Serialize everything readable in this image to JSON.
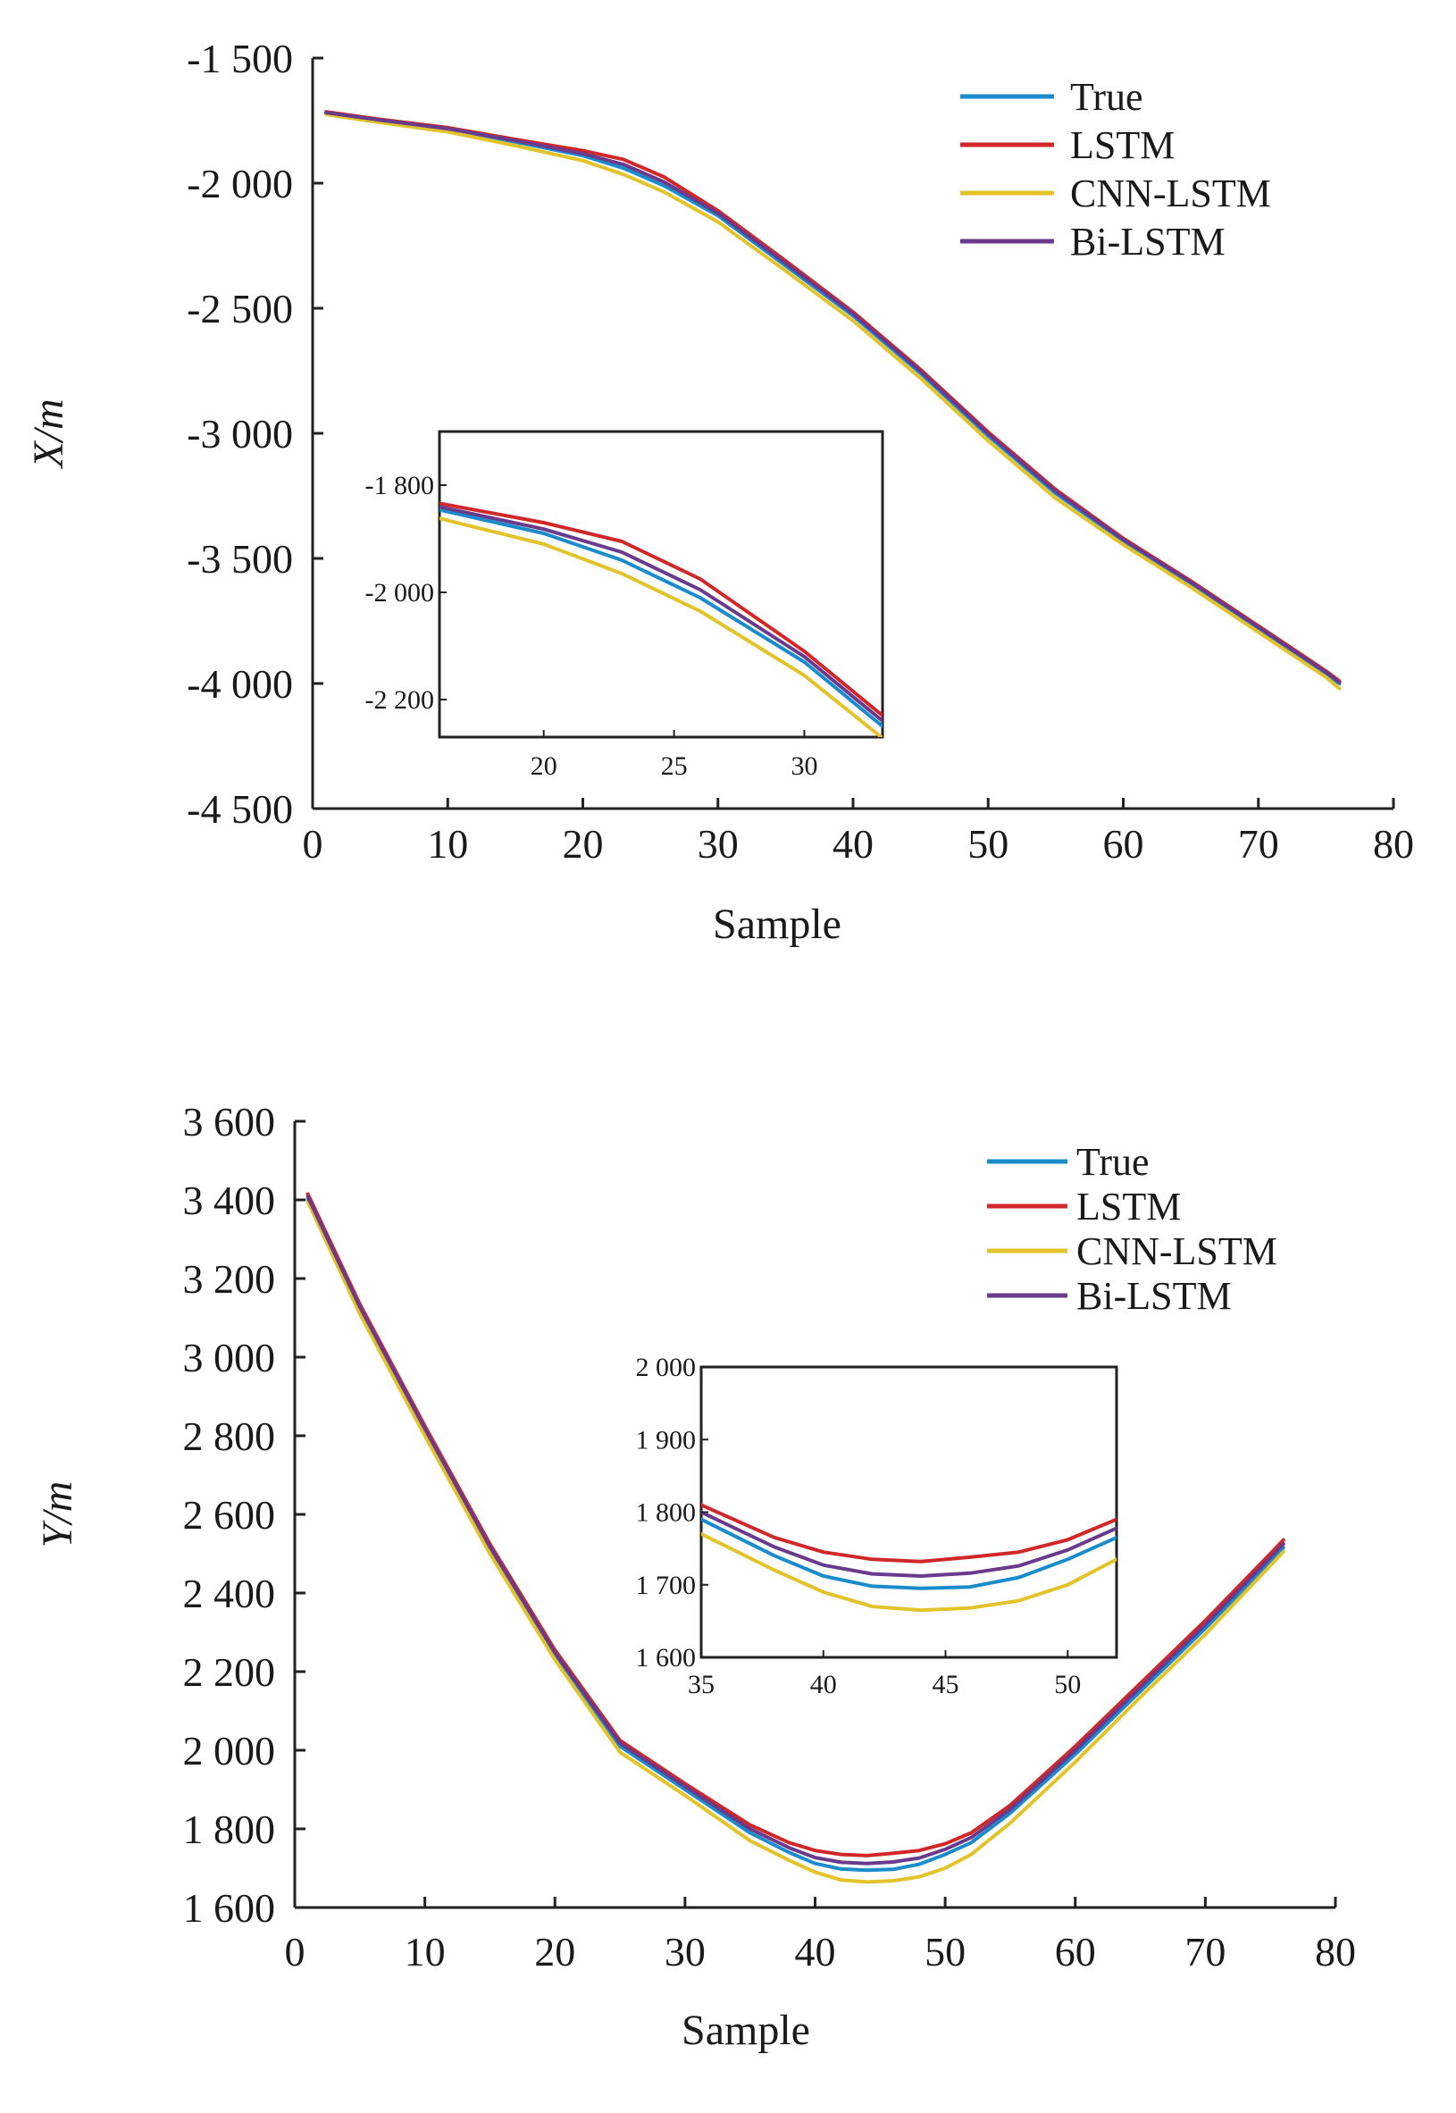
{
  "chart_data": [
    {
      "type": "line",
      "xlabel": "Sample",
      "ylabel": "X/m",
      "xlim": [
        0,
        80
      ],
      "ylim": [
        -4500,
        -1500
      ],
      "xticks": [
        0,
        10,
        20,
        30,
        40,
        50,
        60,
        70,
        80
      ],
      "xtick_labels": [
        "0",
        "10",
        "20",
        "30",
        "40",
        "50",
        "60",
        "70",
        "80"
      ],
      "yticks": [
        -1500,
        -2000,
        -2500,
        -3000,
        -3500,
        -4000,
        -4500
      ],
      "ytick_labels": [
        "-1 500",
        "-2 000",
        "-2 500",
        "-3 000",
        "-3 500",
        "-4 000",
        "-4 500"
      ],
      "grid": false,
      "legend": "top-right",
      "x": [
        1,
        5,
        10,
        15,
        20,
        23,
        26,
        30,
        35,
        40,
        45,
        50,
        55,
        60,
        65,
        70,
        75,
        76
      ],
      "series": [
        {
          "name": "True",
          "color": "#1a8ccc",
          "values": [
            -1720,
            -1750,
            -1785,
            -1835,
            -1890,
            -1940,
            -2010,
            -2130,
            -2330,
            -2530,
            -2760,
            -3010,
            -3240,
            -3430,
            -3600,
            -3780,
            -3960,
            -4000
          ]
        },
        {
          "name": "LSTM",
          "color": "#d02828",
          "values": [
            -1715,
            -1745,
            -1778,
            -1825,
            -1870,
            -1905,
            -1975,
            -2110,
            -2310,
            -2515,
            -2745,
            -2995,
            -3225,
            -3420,
            -3590,
            -3770,
            -3950,
            -3990
          ]
        },
        {
          "name": "CNN-LSTM",
          "color": "#e2c42a",
          "values": [
            -1725,
            -1758,
            -1795,
            -1850,
            -1910,
            -1965,
            -2035,
            -2155,
            -2350,
            -2550,
            -2780,
            -3030,
            -3260,
            -3445,
            -3615,
            -3795,
            -3975,
            -4020
          ]
        },
        {
          "name": "Bi-LSTM",
          "color": "#6a3a8c",
          "values": [
            -1718,
            -1748,
            -1782,
            -1830,
            -1882,
            -1925,
            -1995,
            -2120,
            -2320,
            -2522,
            -2752,
            -3002,
            -3232,
            -3425,
            -3595,
            -3775,
            -3955,
            -3995
          ]
        }
      ],
      "inset": {
        "xlim": [
          16,
          33
        ],
        "ylim": [
          -2270,
          -1700
        ],
        "xticks": [
          20,
          25,
          30
        ],
        "xtick_labels": [
          "20",
          "25",
          "30"
        ],
        "yticks": [
          -1800,
          -2000,
          -2200
        ],
        "ytick_labels": [
          "-1 800",
          "-2 000",
          "-2 200"
        ]
      }
    },
    {
      "type": "line",
      "xlabel": "Sample",
      "ylabel": "Y/m",
      "xlim": [
        0,
        80
      ],
      "ylim": [
        1600,
        3600
      ],
      "xticks": [
        0,
        10,
        20,
        30,
        40,
        50,
        60,
        70,
        80
      ],
      "xtick_labels": [
        "0",
        "10",
        "20",
        "30",
        "40",
        "50",
        "60",
        "70",
        "80"
      ],
      "yticks": [
        1600,
        1800,
        2000,
        2200,
        2400,
        2600,
        2800,
        3000,
        3200,
        3400,
        3600
      ],
      "ytick_labels": [
        "1 600",
        "1 800",
        "2 000",
        "2 200",
        "2 400",
        "2 600",
        "2 800",
        "3 000",
        "3 200",
        "3 400",
        "3 600"
      ],
      "grid": false,
      "legend": "top-right",
      "x": [
        1,
        5,
        10,
        15,
        20,
        25,
        30,
        35,
        38,
        40,
        42,
        44,
        46,
        48,
        50,
        52,
        55,
        60,
        65,
        70,
        75,
        76
      ],
      "series": [
        {
          "name": "True",
          "color": "#1a8ccc",
          "values": [
            3400,
            3120,
            2810,
            2510,
            2240,
            2010,
            1900,
            1790,
            1740,
            1712,
            1698,
            1695,
            1697,
            1710,
            1735,
            1765,
            1840,
            1990,
            2150,
            2310,
            2480,
            2515
          ]
        },
        {
          "name": "LSTM",
          "color": "#d02828",
          "values": [
            3415,
            3135,
            2825,
            2525,
            2255,
            2025,
            1915,
            1810,
            1765,
            1745,
            1735,
            1732,
            1738,
            1745,
            1762,
            1790,
            1860,
            2010,
            2170,
            2330,
            2500,
            2535
          ]
        },
        {
          "name": "CNN-LSTM",
          "color": "#e2c42a",
          "values": [
            3395,
            3110,
            2800,
            2500,
            2230,
            1995,
            1885,
            1770,
            1720,
            1690,
            1670,
            1665,
            1668,
            1678,
            1700,
            1735,
            1815,
            1970,
            2135,
            2295,
            2470,
            2505
          ]
        },
        {
          "name": "Bi-LSTM",
          "color": "#6a3a8c",
          "values": [
            3408,
            3128,
            2818,
            2518,
            2248,
            2018,
            1908,
            1800,
            1752,
            1727,
            1715,
            1712,
            1716,
            1726,
            1748,
            1778,
            1850,
            2000,
            2160,
            2320,
            2490,
            2525
          ]
        }
      ],
      "inset": {
        "xlim": [
          35,
          52
        ],
        "ylim": [
          1600,
          2000
        ],
        "xticks": [
          35,
          40,
          45,
          50
        ],
        "xtick_labels": [
          "35",
          "40",
          "45",
          "50"
        ],
        "yticks": [
          1600,
          1700,
          1800,
          1900,
          2000
        ],
        "ytick_labels": [
          "1 600",
          "1 700",
          "1 800",
          "1 900",
          "2 000"
        ]
      }
    }
  ]
}
